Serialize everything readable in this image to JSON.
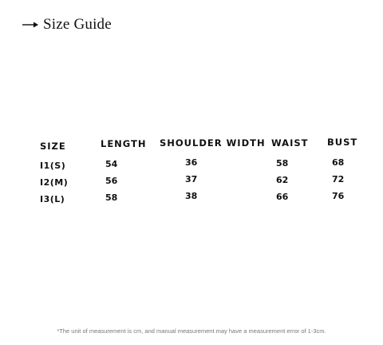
{
  "header": {
    "title": "Size Guide",
    "icon": "right-arrow-icon"
  },
  "table": {
    "columns": [
      "SIZE",
      "LENGTH",
      "SHOULDER WIDTH",
      "WAIST",
      "BUST"
    ],
    "rows": [
      [
        "I1(S)",
        "54",
        "36",
        "58",
        "68"
      ],
      [
        "I2(M)",
        "56",
        "37",
        "62",
        "72"
      ],
      [
        "I3(L)",
        "58",
        "38",
        "66",
        "76"
      ]
    ]
  },
  "footnote": "*The unit of measurement is cm, and manual measurement may have a measurement error of 1-3cm."
}
